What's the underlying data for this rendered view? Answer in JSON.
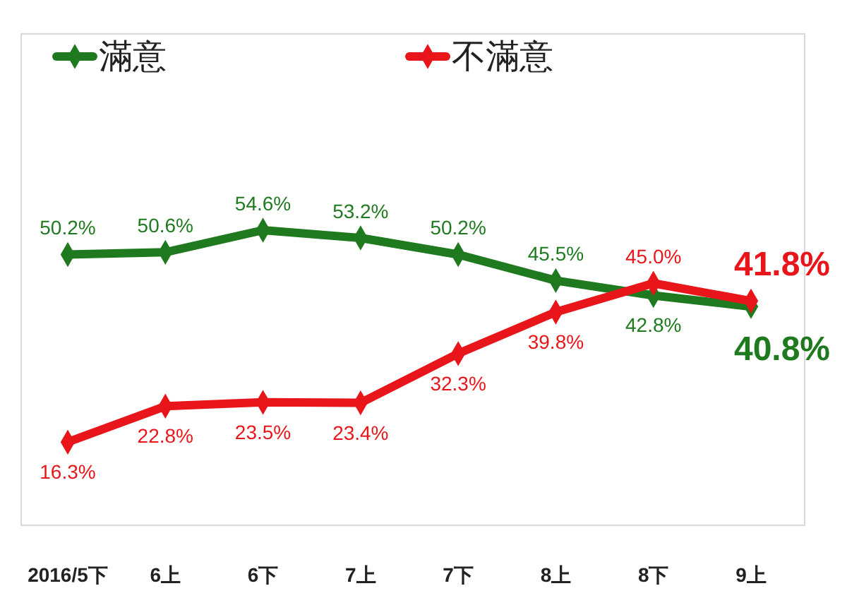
{
  "chart_data": {
    "type": "line",
    "categories": [
      "2016/5下",
      "6上",
      "6下",
      "7上",
      "7下",
      "8上",
      "8下",
      "9上"
    ],
    "series": [
      {
        "name": "滿意",
        "color": "#1f7a1f",
        "values": [
          50.2,
          50.6,
          54.6,
          53.2,
          50.2,
          45.5,
          42.8,
          40.8
        ],
        "value_labels": [
          "50.2%",
          "50.6%",
          "54.6%",
          "53.2%",
          "50.2%",
          "45.5%",
          "42.8%",
          "40.8%"
        ]
      },
      {
        "name": "不滿意",
        "color": "#e8161b",
        "values": [
          16.3,
          22.8,
          23.5,
          23.4,
          32.3,
          39.8,
          45.0,
          41.8
        ],
        "value_labels": [
          "16.3%",
          "22.8%",
          "23.5%",
          "23.4%",
          "32.3%",
          "39.8%",
          "45.0%",
          "41.8%"
        ]
      }
    ],
    "legend": "top",
    "marker": "diamond",
    "line_style": "solid"
  }
}
